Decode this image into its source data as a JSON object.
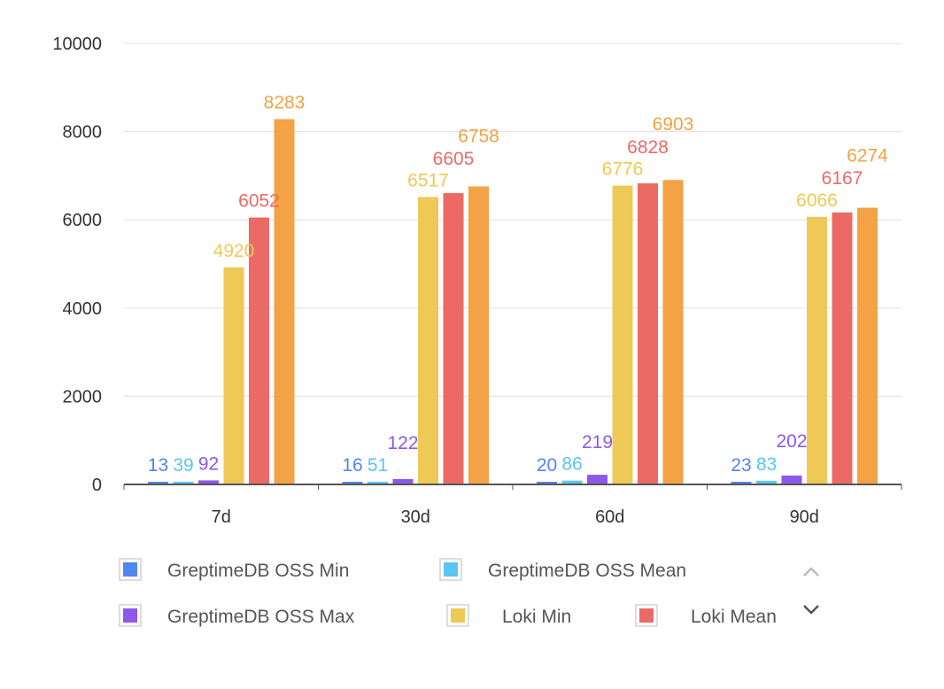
{
  "chart_data": {
    "type": "bar",
    "title": "",
    "xlabel": "",
    "ylabel": "",
    "ylim": [
      0,
      10000
    ],
    "yticks": [
      0,
      2000,
      4000,
      6000,
      8000,
      10000
    ],
    "grid": true,
    "legend_placement": "bottom",
    "categories": [
      "7d",
      "30d",
      "60d",
      "90d"
    ],
    "series": [
      {
        "name": "GreptimeDB OSS Min",
        "color": "#5185f2",
        "values": [
          13,
          16,
          20,
          23
        ]
      },
      {
        "name": "GreptimeDB OSS Mean",
        "color": "#57c7f1",
        "values": [
          39,
          51,
          86,
          83
        ]
      },
      {
        "name": "GreptimeDB OSS Max",
        "color": "#8f58ea",
        "values": [
          92,
          122,
          219,
          202
        ]
      },
      {
        "name": "Loki Min",
        "color": "#efc955",
        "values": [
          4920,
          6517,
          6776,
          6066
        ]
      },
      {
        "name": "Loki Mean",
        "color": "#ec6a65",
        "values": [
          6052,
          6605,
          6828,
          6167
        ]
      },
      {
        "color": "#f3a245",
        "values": [
          8283,
          6758,
          6903,
          6274
        ]
      }
    ],
    "legend_pager": {
      "up_icon": "chevron-up-icon",
      "down_icon": "chevron-down-icon"
    }
  }
}
